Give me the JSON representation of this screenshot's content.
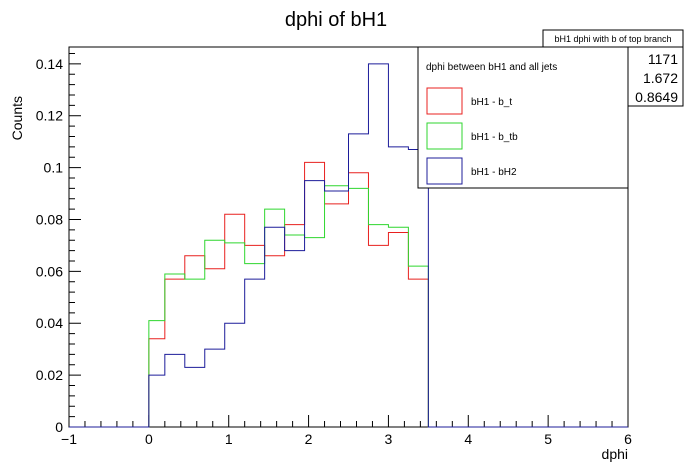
{
  "chart_data": {
    "type": "histogram",
    "title": "dphi of bH1",
    "xlabel": "dphi",
    "ylabel": "Counts",
    "xlim": [
      -1,
      6
    ],
    "ylim": [
      0,
      0.1465
    ],
    "x_ticks": [
      -1,
      0,
      1,
      2,
      3,
      4,
      5,
      6
    ],
    "y_ticks": [
      0,
      0.02,
      0.04,
      0.06,
      0.08,
      0.1,
      0.12,
      0.14
    ],
    "y_tick_labels": [
      "0",
      "0.02",
      "0.04",
      "0.06",
      "0.08",
      "0.1",
      "0.12",
      "0.14"
    ],
    "bin_edges": [
      -1.0,
      -0.75,
      -0.5,
      -0.25,
      0.0,
      0.2,
      0.45,
      0.7,
      0.95,
      1.2,
      1.45,
      1.7,
      1.95,
      2.2,
      2.5,
      2.75,
      3.0,
      3.25,
      3.5,
      3.75,
      4.0,
      4.25,
      4.5,
      4.75,
      5.0,
      5.25,
      5.5,
      5.75,
      6.0
    ],
    "series": [
      {
        "name": "bH1 - b_t",
        "color": "#e8201f",
        "values": [
          0,
          0,
          0,
          0,
          0.034,
          0.057,
          0.066,
          0.061,
          0.082,
          0.07,
          0.066,
          0.078,
          0.102,
          0.086,
          0.098,
          0.07,
          0.075,
          0.057,
          0,
          0,
          0,
          0,
          0,
          0,
          0,
          0,
          0,
          0
        ]
      },
      {
        "name": "bH1 - b_tb",
        "color": "#2fd62f",
        "values": [
          0,
          0,
          0,
          0,
          0.041,
          0.059,
          0.057,
          0.072,
          0.071,
          0.063,
          0.084,
          0.074,
          0.073,
          0.093,
          0.092,
          0.078,
          0.077,
          0.062,
          0,
          0,
          0,
          0,
          0,
          0,
          0,
          0,
          0,
          0
        ]
      },
      {
        "name": "bH1 - bH2",
        "color": "#1c1c9a",
        "values": [
          0,
          0,
          0,
          0,
          0.02,
          0.028,
          0.023,
          0.03,
          0.04,
          0.057,
          0.077,
          0.068,
          0.095,
          0.091,
          0.113,
          0.14,
          0.108,
          0.107,
          0,
          0,
          0,
          0,
          0,
          0,
          0,
          0,
          0,
          0
        ]
      }
    ],
    "legend": {
      "header": "dphi between bH1 and all jets",
      "position": "top-right"
    },
    "stats_box": {
      "title": "bH1 dphi with b of top branch",
      "values": [
        "1171",
        "1.672",
        "0.8649"
      ]
    }
  }
}
